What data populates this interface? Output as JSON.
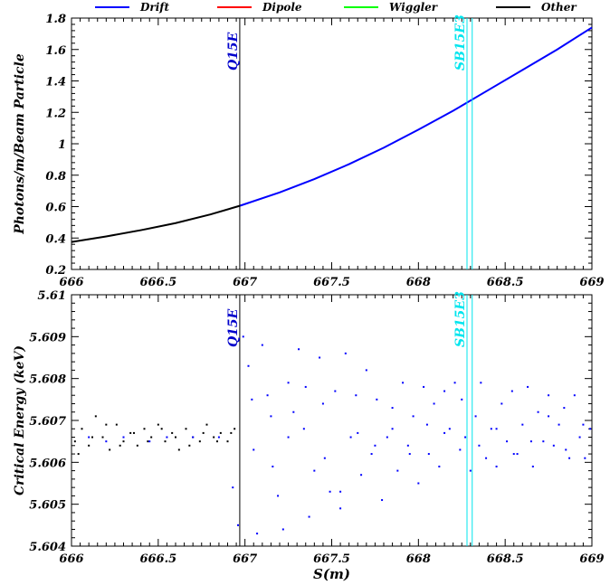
{
  "legend": [
    {
      "label": "Drift",
      "color": "#0000ff"
    },
    {
      "label": "Dipole",
      "color": "#ff0000"
    },
    {
      "label": "Wiggler",
      "color": "#00ff00"
    },
    {
      "label": "Other",
      "color": "#000000"
    }
  ],
  "chart_data": [
    {
      "type": "line",
      "ylabel": "Photons/m/Beam Particle",
      "xlabel": "",
      "xlim": [
        666,
        669
      ],
      "ylim": [
        0.2,
        1.8
      ],
      "xticks": [
        "666",
        "666.5",
        "667",
        "667.5",
        "668",
        "668.5",
        "669"
      ],
      "yticks": [
        "0.2",
        "0.4",
        "0.6",
        "0.8",
        "1",
        "1.2",
        "1.4",
        "1.6",
        "1.8"
      ],
      "series": [
        {
          "name": "Other",
          "color": "#000000",
          "x": [
            666.0,
            666.2,
            666.4,
            666.6,
            666.8,
            666.97
          ],
          "y": [
            0.375,
            0.41,
            0.45,
            0.495,
            0.55,
            0.605
          ]
        },
        {
          "name": "Drift",
          "color": "#0000ff",
          "x": [
            666.97,
            667.2,
            667.4,
            667.6,
            667.8,
            668.0,
            668.2,
            668.4,
            668.6,
            668.8,
            669.0
          ],
          "y": [
            0.605,
            0.69,
            0.775,
            0.87,
            0.975,
            1.09,
            1.21,
            1.34,
            1.47,
            1.6,
            1.74
          ]
        }
      ],
      "markers": [
        {
          "label": "Q15E",
          "x": 666.97,
          "color": "#000000",
          "label_color": "#0000cc"
        },
        {
          "label": "SB15E3",
          "x": 668.28,
          "color": "#00e5ee",
          "label_color": "#00e5ee"
        },
        {
          "label": "",
          "x": 668.31,
          "color": "#00e5ee",
          "label_color": "#00e5ee"
        }
      ],
      "grid": false
    },
    {
      "type": "scatter",
      "ylabel": "Critical Energy (keV)",
      "xlabel": "S(m)",
      "xlim": [
        666,
        669
      ],
      "ylim": [
        5.604,
        5.61
      ],
      "xticks": [
        "666",
        "666.5",
        "667",
        "667.5",
        "668",
        "668.5",
        "669"
      ],
      "yticks": [
        "5.604",
        "5.605",
        "5.606",
        "5.607",
        "5.608",
        "5.609",
        "5.61"
      ],
      "series": [
        {
          "name": "Other",
          "color": "#000000",
          "x": [
            666.02,
            666.06,
            666.1,
            666.14,
            666.18,
            666.22,
            666.26,
            666.3,
            666.34,
            666.38,
            666.42,
            666.46,
            666.5,
            666.54,
            666.58,
            666.62,
            666.66,
            666.7,
            666.74,
            666.78,
            666.82,
            666.86,
            666.9,
            666.94,
            666.04,
            666.12,
            666.2,
            666.28,
            666.36,
            666.44,
            666.52,
            666.6,
            666.68,
            666.76,
            666.84,
            666.92
          ],
          "y": [
            5.6065,
            5.6068,
            5.6064,
            5.6071,
            5.6066,
            5.6063,
            5.6069,
            5.6065,
            5.6067,
            5.6064,
            5.6068,
            5.6066,
            5.6069,
            5.6065,
            5.6067,
            5.6063,
            5.6068,
            5.6066,
            5.6065,
            5.6069,
            5.6066,
            5.6067,
            5.6065,
            5.6068,
            5.6062,
            5.6066,
            5.6069,
            5.6064,
            5.6067,
            5.6065,
            5.6068,
            5.6066,
            5.6064,
            5.6067,
            5.6065,
            5.6067
          ]
        },
        {
          "name": "Drift",
          "color": "#0000ff",
          "x": [
            666.93,
            666.96,
            666.99,
            667.02,
            667.04,
            667.07,
            667.1,
            667.13,
            667.16,
            667.19,
            667.22,
            667.25,
            667.28,
            667.31,
            667.34,
            667.37,
            667.4,
            667.43,
            667.46,
            667.49,
            667.52,
            667.55,
            667.58,
            667.61,
            667.64,
            667.67,
            667.7,
            667.73,
            667.76,
            667.79,
            667.82,
            667.85,
            667.88,
            667.91,
            667.94,
            667.97,
            668.0,
            668.03,
            668.06,
            668.09,
            668.12,
            668.15,
            668.18,
            668.21,
            668.24,
            668.27,
            668.3,
            668.33,
            668.36,
            668.39,
            668.42,
            668.45,
            668.48,
            668.51,
            668.54,
            668.57,
            668.6,
            668.63,
            668.66,
            668.69,
            668.72,
            668.75,
            668.78,
            668.81,
            668.84,
            668.87,
            668.9,
            668.93,
            668.96,
            668.99,
            666.1,
            666.2,
            666.3,
            666.45,
            666.55,
            666.7,
            666.85,
            667.05,
            667.15,
            667.25,
            667.35,
            667.45,
            667.55,
            667.65,
            667.75,
            667.85,
            667.95,
            668.05,
            668.15,
            668.25,
            668.35,
            668.45,
            668.55,
            668.65,
            668.75,
            668.85,
            668.95
          ],
          "y": [
            5.6054,
            5.6045,
            5.609,
            5.6083,
            5.6075,
            5.6043,
            5.6088,
            5.6076,
            5.6059,
            5.6052,
            5.6044,
            5.6079,
            5.6072,
            5.6087,
            5.6068,
            5.6047,
            5.6058,
            5.6085,
            5.6061,
            5.6053,
            5.6077,
            5.6049,
            5.6086,
            5.6066,
            5.6076,
            5.6057,
            5.6082,
            5.6062,
            5.6075,
            5.6051,
            5.6066,
            5.6073,
            5.6058,
            5.6079,
            5.6064,
            5.6071,
            5.6055,
            5.6078,
            5.6062,
            5.6074,
            5.6059,
            5.6077,
            5.6068,
            5.6079,
            5.6063,
            5.6066,
            5.6058,
            5.6071,
            5.6079,
            5.6061,
            5.6068,
            5.6059,
            5.6074,
            5.6065,
            5.6077,
            5.6062,
            5.6069,
            5.6078,
            5.6059,
            5.6072,
            5.6065,
            5.6076,
            5.6064,
            5.6069,
            5.6073,
            5.6061,
            5.6076,
            5.6066,
            5.6061,
            5.6068,
            5.6066,
            5.6065,
            5.6066,
            5.6065,
            5.6066,
            5.6066,
            5.6066,
            5.6063,
            5.6071,
            5.6066,
            5.6078,
            5.6074,
            5.6053,
            5.6067,
            5.6064,
            5.6068,
            5.6062,
            5.6069,
            5.6067,
            5.6075,
            5.6064,
            5.6068,
            5.6062,
            5.6065,
            5.6071,
            5.6063,
            5.6069
          ]
        }
      ],
      "markers": [
        {
          "label": "Q15E",
          "x": 666.97,
          "color": "#000000",
          "label_color": "#0000cc"
        },
        {
          "label": "SB15E3",
          "x": 668.28,
          "color": "#00e5ee",
          "label_color": "#00e5ee"
        },
        {
          "label": "",
          "x": 668.31,
          "color": "#00e5ee",
          "label_color": "#00e5ee"
        }
      ],
      "grid": false
    }
  ]
}
